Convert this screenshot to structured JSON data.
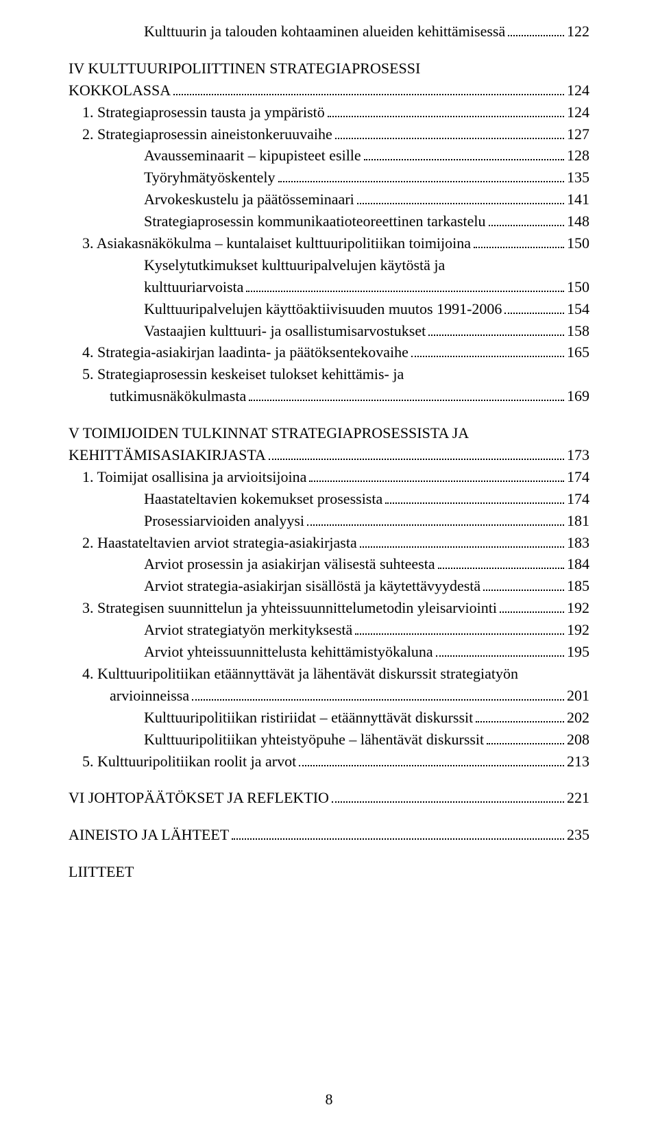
{
  "pageNumber": "8",
  "entries": [
    {
      "indent": 3,
      "text": "Kulttuurin ja talouden kohtaaminen alueiden kehittämisessä",
      "leader": true,
      "page": "122"
    },
    {
      "gap": true
    },
    {
      "indent": 0,
      "text": "IV KULTTUURIPOLIITTINEN STRATEGIAPROSESSI",
      "leader": false,
      "page": ""
    },
    {
      "indent": 0,
      "text": "    KOKKOLASSA",
      "leader": true,
      "page": "124"
    },
    {
      "indent": 1,
      "text": "1. Strategiaprosessin tausta ja ympäristö",
      "leader": true,
      "page": "124"
    },
    {
      "indent": 1,
      "text": "2. Strategiaprosessin aineistonkeruuvaihe",
      "leader": true,
      "page": "127"
    },
    {
      "indent": 3,
      "text": "Avausseminaarit – kipupisteet esille",
      "leader": true,
      "page": "128"
    },
    {
      "indent": 3,
      "text": "Työryhmätyöskentely",
      "leader": true,
      "page": "135"
    },
    {
      "indent": 3,
      "text": "Arvokeskustelu ja päätösseminaari",
      "leader": true,
      "page": "141"
    },
    {
      "indent": 3,
      "text": "Strategiaprosessin kommunikaatioteoreettinen tarkastelu",
      "leader": true,
      "page": "148"
    },
    {
      "indent": 1,
      "text": "3. Asiakasnäkökulma – kuntalaiset kulttuuripolitiikan toimijoina",
      "leader": true,
      "page": "150"
    },
    {
      "indent": 3,
      "text": "Kyselytutkimukset kulttuuripalvelujen käytöstä ja",
      "leader": false,
      "page": ""
    },
    {
      "indent": 3,
      "text": "kulttuuriarvoista",
      "leader": true,
      "page": "150"
    },
    {
      "indent": 3,
      "text": "Kulttuuripalvelujen käyttöaktiivisuuden muutos 1991-2006",
      "leader": true,
      "page": "154"
    },
    {
      "indent": 3,
      "text": "Vastaajien kulttuuri- ja osallistumisarvostukset",
      "leader": true,
      "page": "158"
    },
    {
      "indent": 1,
      "text": "4. Strategia-asiakirjan laadinta- ja päätöksentekovaihe",
      "leader": true,
      "page": "165"
    },
    {
      "indent": 1,
      "text": "5. Strategiaprosessin keskeiset tulokset kehittämis- ja",
      "leader": false,
      "page": ""
    },
    {
      "indent": 2,
      "text": "tutkimusnäkökulmasta",
      "leader": true,
      "page": "169"
    },
    {
      "gap": true
    },
    {
      "indent": 0,
      "text": "V TOIMIJOIDEN TULKINNAT STRATEGIAPROSESSISTA JA",
      "leader": false,
      "page": ""
    },
    {
      "indent": 0,
      "text": "KEHITTÄMISASIAKIRJASTA",
      "leader": true,
      "page": "173"
    },
    {
      "indent": 1,
      "text": "1. Toimijat osallisina ja arvioitsijoina",
      "leader": true,
      "page": "174"
    },
    {
      "indent": 3,
      "text": "Haastateltavien kokemukset prosessista",
      "leader": true,
      "page": "174"
    },
    {
      "indent": 3,
      "text": "Prosessiarvioiden analyysi",
      "leader": true,
      "page": "181"
    },
    {
      "indent": 1,
      "text": "2. Haastateltavien arviot strategia-asiakirjasta",
      "leader": true,
      "page": "183"
    },
    {
      "indent": 3,
      "text": "Arviot prosessin ja asiakirjan välisestä suhteesta",
      "leader": true,
      "page": "184"
    },
    {
      "indent": 3,
      "text": "Arviot strategia-asiakirjan sisällöstä ja käytettävyydestä",
      "leader": true,
      "page": "185"
    },
    {
      "indent": 1,
      "text": "3. Strategisen suunnittelun ja yhteissuunnittelumetodin yleisarviointi",
      "leader": true,
      "page": "192"
    },
    {
      "indent": 3,
      "text": "Arviot strategiatyön merkityksestä",
      "leader": true,
      "page": "192"
    },
    {
      "indent": 3,
      "text": "Arviot yhteissuunnittelusta kehittämistyökaluna",
      "leader": true,
      "page": "195"
    },
    {
      "indent": 1,
      "text": "4. Kulttuuripolitiikan etäännyttävät ja lähentävät diskurssit strategiatyön",
      "leader": false,
      "page": ""
    },
    {
      "indent": 2,
      "text": "arvioinneissa",
      "leader": true,
      "page": "201"
    },
    {
      "indent": 3,
      "text": "Kulttuuripolitiikan ristiriidat – etäännyttävät diskurssit",
      "leader": true,
      "page": "202"
    },
    {
      "indent": 3,
      "text": "Kulttuuripolitiikan yhteistyöpuhe – lähentävät diskurssit",
      "leader": true,
      "page": "208"
    },
    {
      "indent": 1,
      "text": "5. Kulttuuripolitiikan roolit ja arvot",
      "leader": true,
      "page": "213"
    },
    {
      "gap": true
    },
    {
      "indent": 0,
      "text": "VI JOHTOPÄÄTÖKSET JA REFLEKTIO",
      "leader": true,
      "page": "221"
    },
    {
      "gap": true
    },
    {
      "indent": 0,
      "text": "AINEISTO JA LÄHTEET",
      "leader": true,
      "page": "235"
    },
    {
      "gap": true
    },
    {
      "indent": 0,
      "text": "LIITTEET",
      "leader": false,
      "page": ""
    }
  ]
}
